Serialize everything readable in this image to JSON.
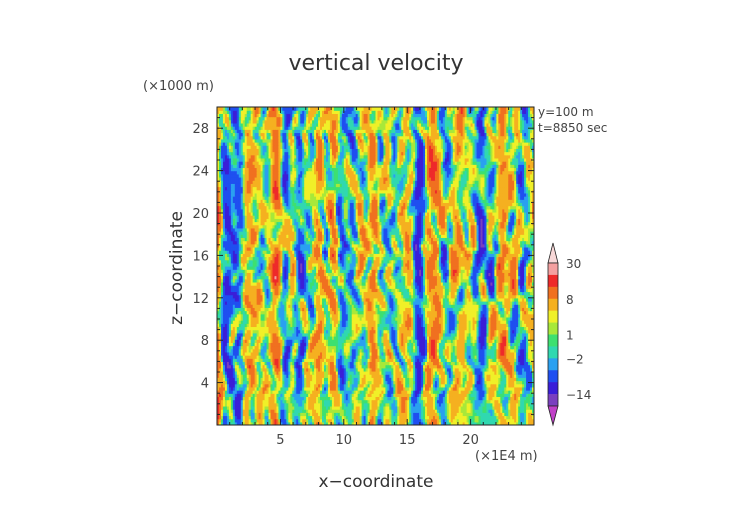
{
  "chart_data": {
    "type": "heatmap",
    "title": "vertical velocity",
    "xlabel": "x−coordinate",
    "ylabel": "z−coordinate",
    "x_unit": "(×1E4 m)",
    "y_unit": "(×1000 m)",
    "annotations": [
      "y=100 m",
      "t=8850 sec"
    ],
    "xlim": [
      0,
      25
    ],
    "ylim": [
      0,
      30
    ],
    "x_ticks": [
      5,
      10,
      15,
      20
    ],
    "y_ticks": [
      4,
      8,
      12,
      16,
      20,
      24,
      28
    ],
    "colorbar": {
      "labels": [
        {
          "text": "30",
          "value": 30
        },
        {
          "text": "8",
          "value": 8
        },
        {
          "text": "1",
          "value": 1
        },
        {
          "text": "−2",
          "value": -2
        },
        {
          "text": "−14",
          "value": -14
        }
      ],
      "levels": [
        -30,
        -14,
        -8,
        -4,
        -2,
        0,
        1,
        2,
        4,
        8,
        14,
        20,
        30
      ],
      "colors": [
        "#c040c8",
        "#7a3fbf",
        "#3a1ed8",
        "#1f4ff0",
        "#2aa0f0",
        "#30d8b0",
        "#3de070",
        "#a8e83a",
        "#f0f028",
        "#f5b020",
        "#f07020",
        "#ee2a2a",
        "#f4a0a0",
        "#f8d8d8"
      ],
      "extend": "both"
    },
    "field_description_values": {
      "dominant_pattern": "vertical streaks of alternating updrafts and downdrafts",
      "range_shown": [
        -30,
        30
      ]
    }
  }
}
